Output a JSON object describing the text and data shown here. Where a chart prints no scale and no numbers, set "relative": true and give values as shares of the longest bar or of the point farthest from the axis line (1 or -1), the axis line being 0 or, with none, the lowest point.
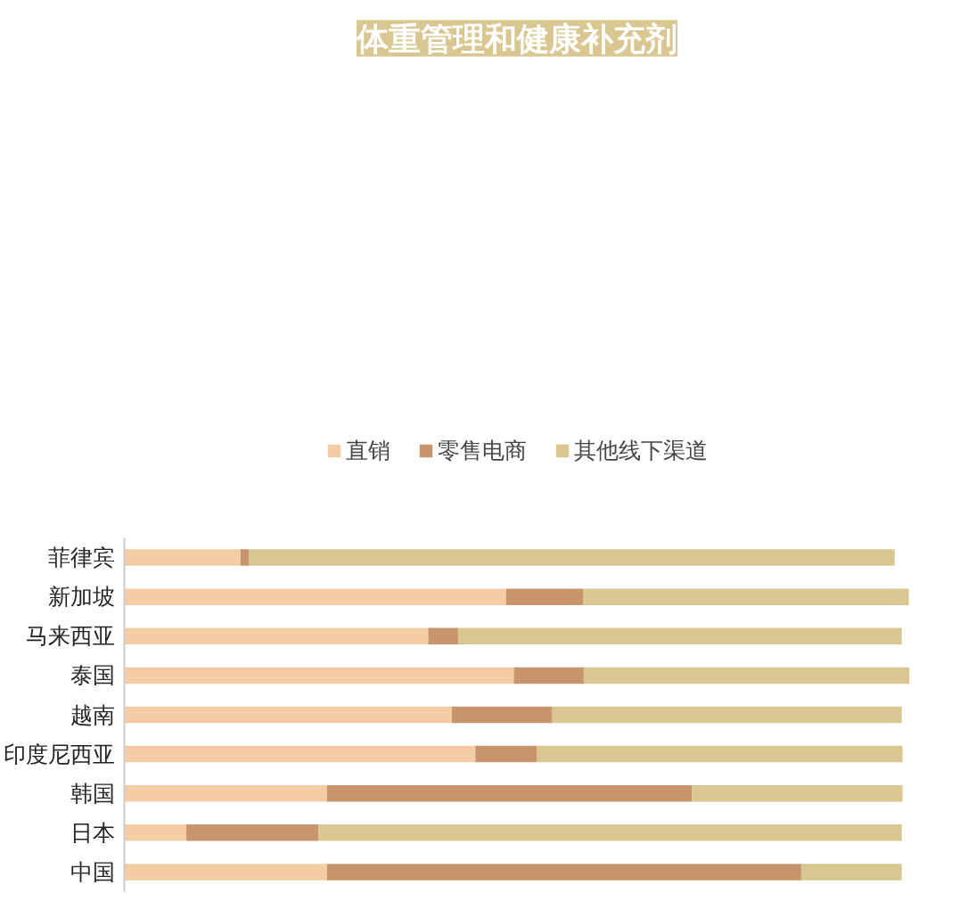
{
  "chart_data": {
    "type": "bar",
    "title": "体重管理和健康补充剂",
    "orientation": "horizontal",
    "stacked": true,
    "relative": true,
    "legend": "top",
    "grid": false,
    "categories": [
      "菲律宾",
      "新加坡",
      "马来西亚",
      "泰国",
      "越南",
      "印度尼西亚",
      "韩国",
      "日本",
      "中国"
    ],
    "series": [
      {
        "name": "直销",
        "color": "#f5cda5",
        "values": [
          0.148,
          0.486,
          0.387,
          0.496,
          0.417,
          0.447,
          0.258,
          0.079,
          0.258
        ]
      },
      {
        "name": "零售电商",
        "color": "#c8946c",
        "values": [
          0.011,
          0.098,
          0.038,
          0.089,
          0.128,
          0.078,
          0.465,
          0.168,
          0.604
        ]
      },
      {
        "name": "其他线下渠道",
        "color": "#d9c690",
        "values": [
          0.822,
          0.415,
          0.565,
          0.415,
          0.445,
          0.466,
          0.268,
          0.743,
          0.128
        ]
      }
    ]
  }
}
